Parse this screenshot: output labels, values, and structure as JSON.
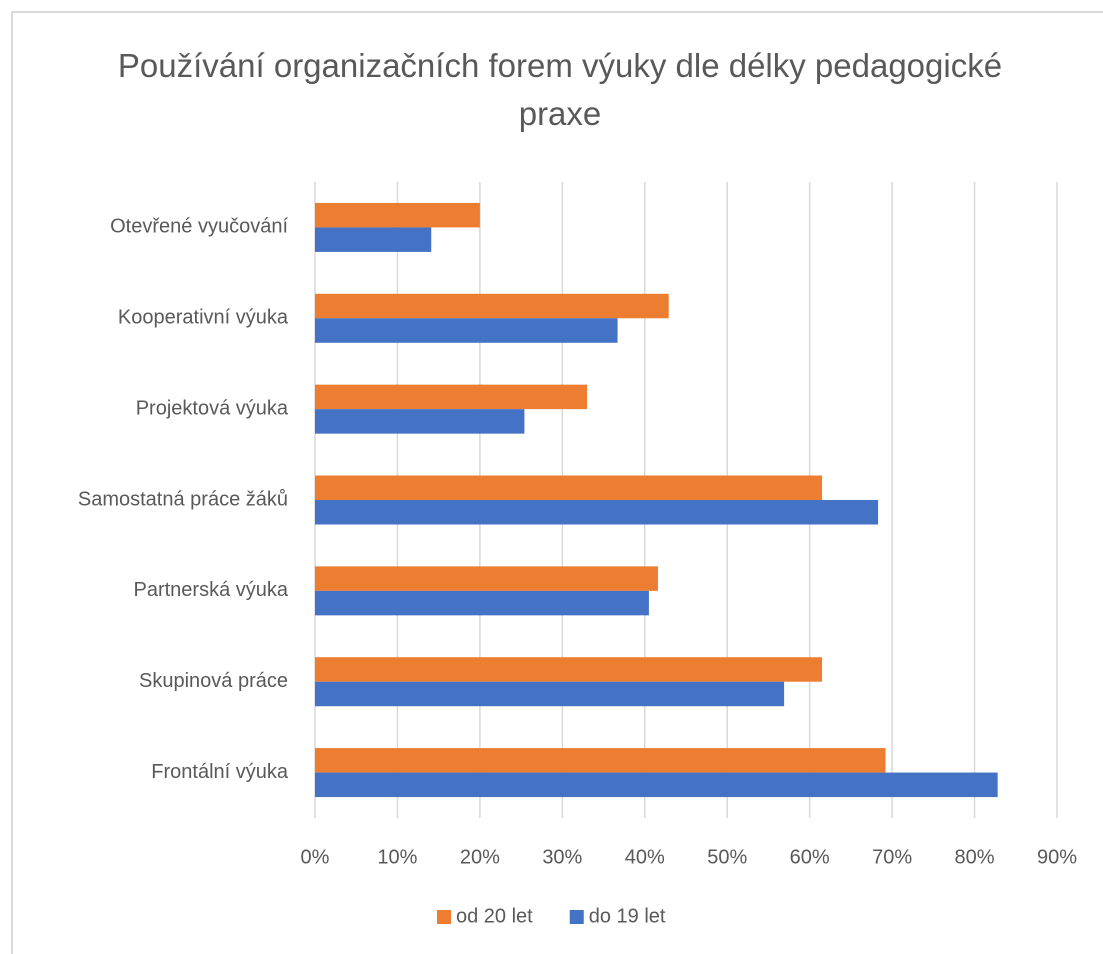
{
  "chart_data": {
    "type": "bar",
    "orientation": "horizontal",
    "title": "Používání organizačních forem výuky dle délky pedagogické praxe",
    "categories": [
      "Otevřené vyučování",
      "Kooperativní výuka",
      "Projektová výuka",
      "Samostatná práce žáků",
      "Partnerská výuka",
      "Skupinová práce",
      "Frontální výuka"
    ],
    "series": [
      {
        "name": "od 20 let",
        "color": "#ed7d31",
        "values": [
          20,
          42.9,
          33,
          61.5,
          41.6,
          61.5,
          69.2
        ]
      },
      {
        "name": "do 19 let",
        "color": "#4472c4",
        "values": [
          14.1,
          36.7,
          25.4,
          68.3,
          40.5,
          56.9,
          82.8
        ]
      }
    ],
    "xlim": [
      0,
      90
    ],
    "xticks": [
      {
        "value": 0,
        "label": "0%"
      },
      {
        "value": 10,
        "label": "10%"
      },
      {
        "value": 20,
        "label": "20%"
      },
      {
        "value": 30,
        "label": "30%"
      },
      {
        "value": 40,
        "label": "40%"
      },
      {
        "value": 50,
        "label": "50%"
      },
      {
        "value": 60,
        "label": "60%"
      },
      {
        "value": 70,
        "label": "70%"
      },
      {
        "value": 80,
        "label": "80%"
      },
      {
        "value": 90,
        "label": "90%"
      }
    ],
    "grid": true,
    "legend": "bottom"
  }
}
